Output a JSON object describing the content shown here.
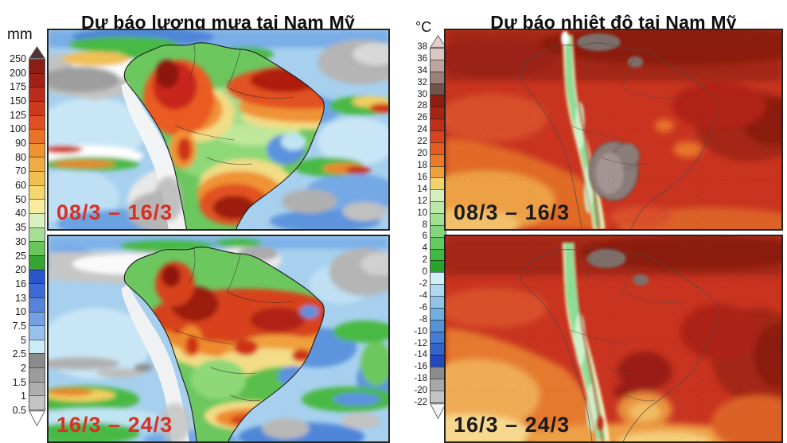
{
  "panels": [
    {
      "id": "precip",
      "title": "Dự báo lượng mưa tại Nam Mỹ",
      "unit": "mm",
      "colorbar": {
        "ticks": [
          "250",
          "200",
          "175",
          "150",
          "125",
          "100",
          "90",
          "80",
          "70",
          "60",
          "50",
          "40",
          "35",
          "30",
          "25",
          "20",
          "16",
          "13",
          "10",
          "7.5",
          "5",
          "2.5",
          "2",
          "1.5",
          "1",
          "0.5"
        ],
        "segment_colors": [
          "#8a1d14",
          "#a32017",
          "#b92b1b",
          "#cd3a1e",
          "#e04f22",
          "#ea7227",
          "#ef9232",
          "#f0ab44",
          "#f0c04f",
          "#f3d76f",
          "#f8ec9f",
          "#d9f0c0",
          "#a8df96",
          "#69c65a",
          "#35a433",
          "#2b55cb",
          "#3c6bd6",
          "#5584da",
          "#74a1e2",
          "#97c1ec",
          "#c9ecf6",
          "#8a8a8a",
          "#9c9c9c",
          "#aeaeae",
          "#c4c4c4"
        ],
        "arrow_top_color": "#4e3131",
        "arrow_bottom_color": "#ffffff"
      },
      "maps": [
        {
          "label": "08/3 – 16/3",
          "label_color": "#d93025"
        },
        {
          "label": "16/3 – 24/3",
          "label_color": "#d93025"
        }
      ]
    },
    {
      "id": "temp",
      "title": "Dự báo nhiệt độ tại Nam Mỹ",
      "unit": "°C",
      "colorbar": {
        "ticks": [
          "38",
          "36",
          "34",
          "32",
          "30",
          "28",
          "26",
          "24",
          "22",
          "20",
          "18",
          "16",
          "14",
          "12",
          "10",
          "8",
          "6",
          "4",
          "2",
          "0",
          "-2",
          "-4",
          "-6",
          "-8",
          "-10",
          "-12",
          "-14",
          "-16",
          "-18",
          "-20",
          "-22"
        ],
        "segment_colors": [
          "#dcc6c2",
          "#bda49e",
          "#9c7f78",
          "#725349",
          "#8f1d10",
          "#a82415",
          "#c22d18",
          "#d8431f",
          "#e45c22",
          "#ea7b28",
          "#eda03c",
          "#f2d36b",
          "#d4f0be",
          "#bce8aa",
          "#a2e092",
          "#84d67c",
          "#63ca60",
          "#3eba44",
          "#2aa32e",
          "#cfeef8",
          "#b0d8ef",
          "#92c4e8",
          "#72aede",
          "#5494d6",
          "#447cd0",
          "#3263c8",
          "#2148bc",
          "#8c8c8c",
          "#a8a8a8",
          "#c4c4c4"
        ],
        "arrow_top_color": "#e3cecb",
        "arrow_bottom_color": "#f2f2f2"
      },
      "maps": [
        {
          "label": "08/3 – 16/3",
          "label_color": "#1b1b1b"
        },
        {
          "label": "16/3 – 24/3",
          "label_color": "#1b1b1b"
        }
      ]
    }
  ]
}
